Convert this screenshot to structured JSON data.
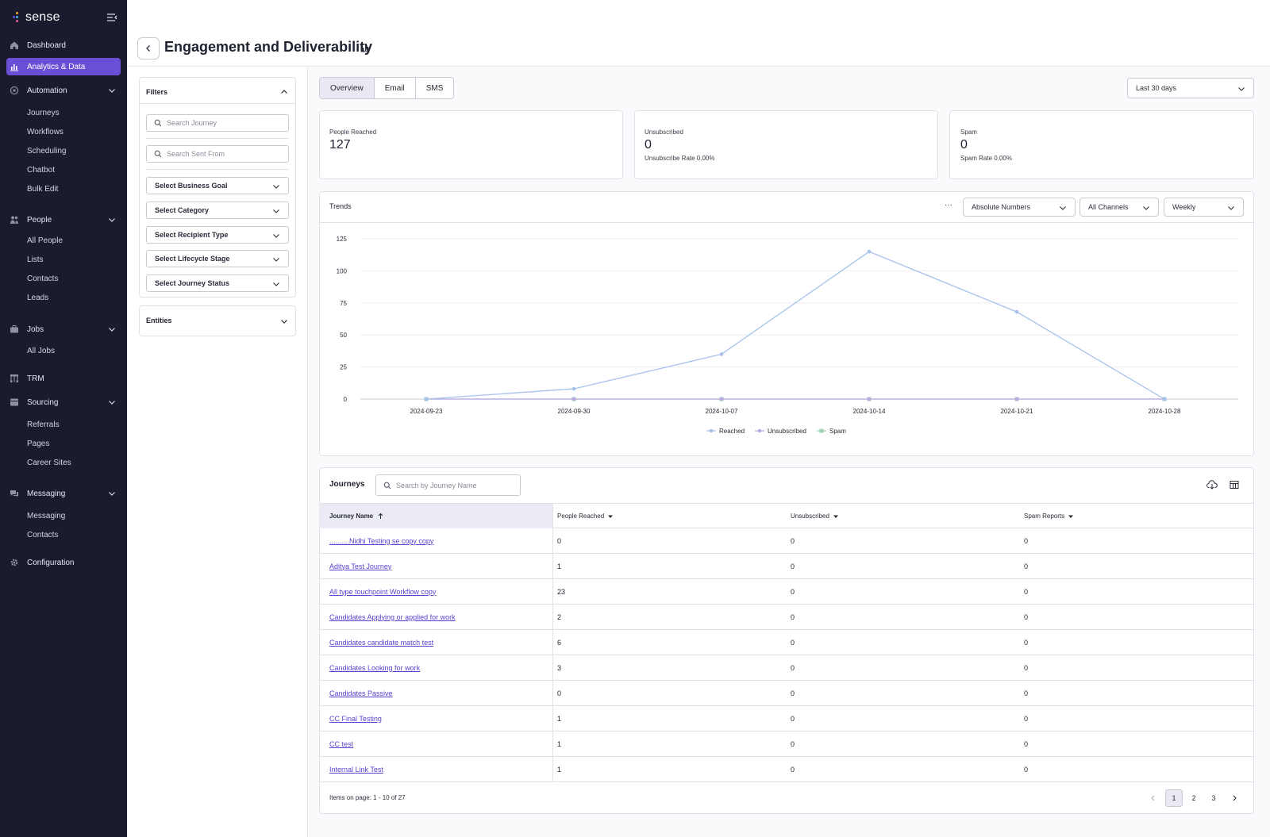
{
  "app": {
    "brand": "sense"
  },
  "sidebar": {
    "items": [
      {
        "label": "Dashboard"
      },
      {
        "label": "Analytics & Data"
      },
      {
        "label": "Automation",
        "children": [
          "Journeys",
          "Workflows",
          "Scheduling",
          "Chatbot",
          "Bulk Edit"
        ]
      },
      {
        "label": "People",
        "children": [
          "All People",
          "Lists",
          "Contacts",
          "Leads"
        ]
      },
      {
        "label": "Jobs",
        "children": [
          "All Jobs"
        ]
      },
      {
        "label": "TRM"
      },
      {
        "label": "Sourcing",
        "children": [
          "Referrals",
          "Pages",
          "Career Sites"
        ]
      },
      {
        "label": "Messaging",
        "children": [
          "Messaging",
          "Contacts"
        ]
      },
      {
        "label": "Configuration"
      }
    ]
  },
  "header": {
    "title": "Engagement and Deliverability"
  },
  "filters": {
    "title": "Filters",
    "search_journey_placeholder": "Search Journey",
    "search_sent_from_placeholder": "Search Sent From",
    "selects": [
      "Select Business Goal",
      "Select Category",
      "Select Recipient Type",
      "Select Lifecycle Stage",
      "Select Journey Status"
    ],
    "entities_title": "Entities"
  },
  "tabs": [
    "Overview",
    "Email",
    "SMS"
  ],
  "date_range": "Last 30 days",
  "stats": {
    "reached": {
      "label": "People Reached",
      "value": "127"
    },
    "unsubscribed": {
      "label": "Unsubscribed",
      "value": "0",
      "sub": "Unsubscribe Rate 0.00%"
    },
    "spam": {
      "label": "Spam",
      "value": "0",
      "sub": "Spam Rate 0.00%"
    }
  },
  "trends": {
    "title": "Trends",
    "more": "···",
    "metric": "Absolute Numbers",
    "channels": "All Channels",
    "interval": "Weekly"
  },
  "chart_data": {
    "type": "line",
    "x": [
      "2024-09-23",
      "2024-09-30",
      "2024-10-07",
      "2024-10-14",
      "2024-10-21",
      "2024-10-28"
    ],
    "series": [
      {
        "name": "Reached",
        "values": [
          0,
          8,
          35,
          115,
          68,
          0
        ],
        "color": "#a6c2ec"
      },
      {
        "name": "Unsubscribed",
        "values": [
          0,
          0,
          0,
          0,
          0,
          0
        ],
        "color": "#b9a8e3"
      },
      {
        "name": "Spam",
        "values": [
          0,
          0,
          0,
          0,
          0,
          0
        ],
        "color": "#9fd3b0"
      }
    ],
    "yticks": [
      "0",
      "25",
      "50",
      "75",
      "100",
      "125"
    ],
    "ylim": [
      0,
      125
    ],
    "grid": true,
    "legend": "bottom"
  },
  "journeys": {
    "title": "Journeys",
    "search_placeholder": "Search by Journey Name",
    "columns": [
      "Journey Name",
      "People Reached",
      "Unsubscribed",
      "Spam Reports"
    ],
    "rows": [
      [
        "..........Nidhi Testing se copy copy",
        "0",
        "0",
        "0"
      ],
      [
        "Aditya Test Journey",
        "1",
        "0",
        "0"
      ],
      [
        "All type touchpoint Workflow copy",
        "23",
        "0",
        "0"
      ],
      [
        "Candidates Applying or applied for work",
        "2",
        "0",
        "0"
      ],
      [
        "Candidates candidate match test",
        "6",
        "0",
        "0"
      ],
      [
        "Candidates Looking for work",
        "3",
        "0",
        "0"
      ],
      [
        "Candidates Passive",
        "0",
        "0",
        "0"
      ],
      [
        "CC Final Testing",
        "1",
        "0",
        "0"
      ],
      [
        "CC test",
        "1",
        "0",
        "0"
      ],
      [
        "Internal Link Test",
        "1",
        "0",
        "0"
      ]
    ],
    "items_summary": "Items on page: 1 - 10 of 27",
    "pages": [
      "1",
      "2",
      "3"
    ]
  }
}
